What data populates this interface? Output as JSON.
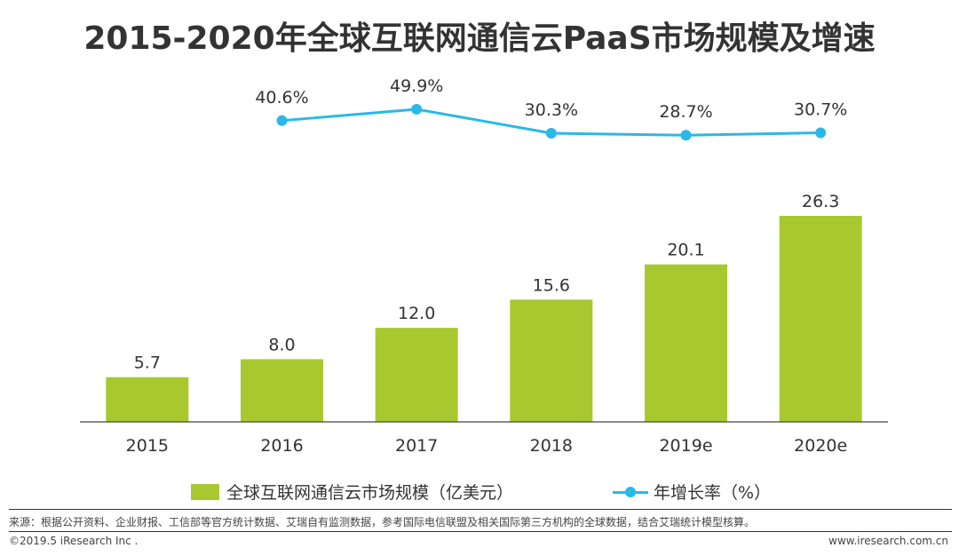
{
  "title": "2015-2020年全球互联网通信云PaaS市场规模及增速",
  "colors": {
    "bar": "#a9c830",
    "line": "#29b9e8",
    "axis": "#444444",
    "text": "#333333"
  },
  "chart_data": {
    "type": "bar",
    "categories": [
      "2015",
      "2016",
      "2017",
      "2018",
      "2019e",
      "2020e"
    ],
    "series": [
      {
        "name": "全球互联网通信云市场规模（亿美元）",
        "type": "bar",
        "values": [
          5.7,
          8.0,
          12.0,
          15.6,
          20.1,
          26.3
        ],
        "labels": [
          "5.7",
          "8.0",
          "12.0",
          "15.6",
          "20.1",
          "26.3"
        ]
      },
      {
        "name": "年增长率（%）",
        "type": "line",
        "values": [
          null,
          40.6,
          49.9,
          30.3,
          28.7,
          30.7
        ],
        "labels": [
          "",
          "40.6%",
          "49.9%",
          "30.3%",
          "28.7%",
          "30.7%"
        ]
      }
    ],
    "legend_position": "bottom",
    "grid": false
  },
  "legend": {
    "bar_label": "全球互联网通信云市场规模（亿美元）",
    "line_label": "年增长率（%）"
  },
  "source": "来源：根据公开资料、企业财报、工信部等官方统计数据、艾瑞自有监测数据，参考国际电信联盟及相关国际第三方机构的全球数据，结合艾瑞统计模型核算。",
  "footer": {
    "copyright": "©2019.5 iResearch Inc .",
    "website": "www.iresearch.com.cn"
  }
}
